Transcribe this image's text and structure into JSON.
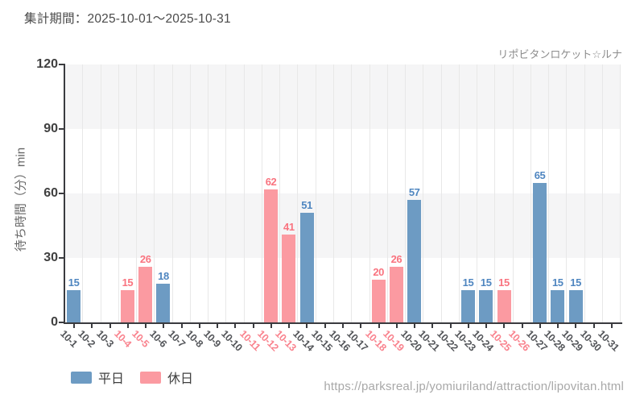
{
  "header": {
    "period_label": "集計期間：2025-10-01～2025-10-31"
  },
  "footer": {
    "url": "https://parksreal.jp/yomiuriland/attraction/lipovitan.html"
  },
  "legend": {
    "items": [
      {
        "label": "平日",
        "kind": "weekday",
        "color": "#6d9bc3"
      },
      {
        "label": "休日",
        "kind": "holiday",
        "color": "#fb9aa1"
      }
    ]
  },
  "colors": {
    "weekday_bar": "#6d9bc3",
    "holiday_bar": "#fb9aa1",
    "weekday_value_text": "#4f86c0",
    "holiday_value_text": "#f9737f",
    "weekday_axis_label": "#54565a",
    "holiday_axis_label": "#f9838e",
    "band": "#f5f5f6",
    "gridline": "#e8e8e8",
    "axis": "#3a3b3f"
  },
  "chart_data": {
    "type": "bar",
    "title": "リポビタンロケット☆ルナ",
    "ylabel": "待ち時間（分）min",
    "ylim": [
      0,
      120
    ],
    "yticks": [
      0,
      30,
      60,
      90,
      120
    ],
    "grid": true,
    "legend_position": "bottom-left",
    "categories": [
      "10-1",
      "10-2",
      "10-3",
      "10-4",
      "10-5",
      "10-6",
      "10-7",
      "10-8",
      "10-9",
      "10-10",
      "10-11",
      "10-12",
      "10-13",
      "10-14",
      "10-15",
      "10-16",
      "10-17",
      "10-18",
      "10-19",
      "10-20",
      "10-21",
      "10-22",
      "10-23",
      "10-24",
      "10-25",
      "10-26",
      "10-27",
      "10-28",
      "10-29",
      "10-30",
      "10-31"
    ],
    "days": [
      {
        "label": "10-1",
        "value": 15,
        "kind": "weekday"
      },
      {
        "label": "10-2",
        "value": null,
        "kind": "weekday"
      },
      {
        "label": "10-3",
        "value": null,
        "kind": "weekday"
      },
      {
        "label": "10-4",
        "value": 15,
        "kind": "holiday"
      },
      {
        "label": "10-5",
        "value": 26,
        "kind": "holiday"
      },
      {
        "label": "10-6",
        "value": 18,
        "kind": "weekday"
      },
      {
        "label": "10-7",
        "value": null,
        "kind": "weekday"
      },
      {
        "label": "10-8",
        "value": null,
        "kind": "weekday"
      },
      {
        "label": "10-9",
        "value": null,
        "kind": "weekday"
      },
      {
        "label": "10-10",
        "value": null,
        "kind": "weekday"
      },
      {
        "label": "10-11",
        "value": null,
        "kind": "holiday"
      },
      {
        "label": "10-12",
        "value": 62,
        "kind": "holiday"
      },
      {
        "label": "10-13",
        "value": 41,
        "kind": "holiday"
      },
      {
        "label": "10-14",
        "value": 51,
        "kind": "weekday"
      },
      {
        "label": "10-15",
        "value": null,
        "kind": "weekday"
      },
      {
        "label": "10-16",
        "value": null,
        "kind": "weekday"
      },
      {
        "label": "10-17",
        "value": null,
        "kind": "weekday"
      },
      {
        "label": "10-18",
        "value": 20,
        "kind": "holiday"
      },
      {
        "label": "10-19",
        "value": 26,
        "kind": "holiday"
      },
      {
        "label": "10-20",
        "value": 57,
        "kind": "weekday"
      },
      {
        "label": "10-21",
        "value": null,
        "kind": "weekday"
      },
      {
        "label": "10-22",
        "value": null,
        "kind": "weekday"
      },
      {
        "label": "10-23",
        "value": 15,
        "kind": "weekday"
      },
      {
        "label": "10-24",
        "value": 15,
        "kind": "weekday"
      },
      {
        "label": "10-25",
        "value": 15,
        "kind": "holiday"
      },
      {
        "label": "10-26",
        "value": null,
        "kind": "holiday"
      },
      {
        "label": "10-27",
        "value": 65,
        "kind": "weekday"
      },
      {
        "label": "10-28",
        "value": 15,
        "kind": "weekday"
      },
      {
        "label": "10-29",
        "value": 15,
        "kind": "weekday"
      },
      {
        "label": "10-30",
        "value": null,
        "kind": "weekday"
      },
      {
        "label": "10-31",
        "value": null,
        "kind": "weekday"
      }
    ],
    "series": [
      {
        "name": "平日",
        "color": "#6d9bc3",
        "points": {
          "10-1": 15,
          "10-6": 18,
          "10-14": 51,
          "10-20": 57,
          "10-23": 15,
          "10-24": 15,
          "10-27": 65,
          "10-28": 15,
          "10-29": 15
        }
      },
      {
        "name": "休日",
        "color": "#fb9aa1",
        "points": {
          "10-4": 15,
          "10-5": 26,
          "10-12": 62,
          "10-13": 41,
          "10-18": 20,
          "10-19": 26,
          "10-25": 15
        }
      }
    ]
  }
}
